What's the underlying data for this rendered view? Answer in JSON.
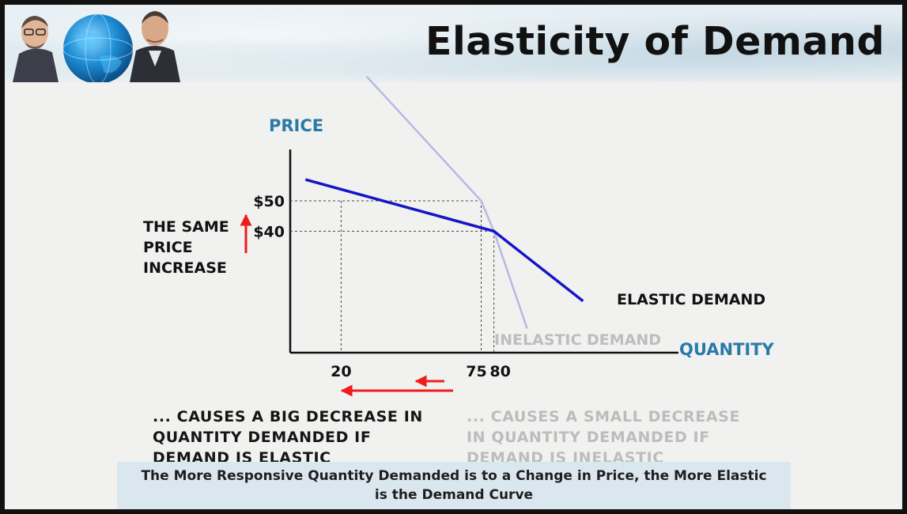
{
  "header": {
    "title": "Elasticity of Demand"
  },
  "chart_data": {
    "type": "line",
    "xlabel": "QUANTITY",
    "ylabel": "PRICE",
    "x_ticks": [
      20,
      75,
      80
    ],
    "x_tick_labels": [
      "20",
      "75",
      "80"
    ],
    "y_ticks": [
      40,
      50
    ],
    "y_tick_labels": [
      "$40",
      "$50"
    ],
    "xlim": [
      0,
      140
    ],
    "ylim": [
      0,
      77
    ],
    "grid": false,
    "series": [
      {
        "name": "ELASTIC DEMAND",
        "x": [
          6,
          80,
          115
        ],
        "y": [
          57,
          40,
          17
        ],
        "color": "#1515c8"
      },
      {
        "name": "INELASTIC DEMAND",
        "x": [
          30,
          75,
          80,
          93
        ],
        "y": [
          91,
          50,
          40,
          8
        ],
        "color": "#b8b8e4"
      }
    ],
    "guides": [
      {
        "x": 20,
        "y": 50
      },
      {
        "x": 80,
        "y": 40
      },
      {
        "x": 75,
        "y": 50
      }
    ],
    "annotations": {
      "price_increase": "THE SAME PRICE INCREASE",
      "price_increase_lines": [
        "THE SAME",
        "PRICE",
        "INCREASE"
      ],
      "elastic_effect": "... CAUSES A BIG DECREASE IN QUANTITY DEMANDED IF DEMAND IS ELASTIC",
      "inelastic_effect": "... CAUSES A SMALL DECREASE IN QUANTITY DEMANDED IF DEMAND IS INELASTIC"
    },
    "colors": {
      "axis_label": "#2a7aa7",
      "elastic": "#1515c8",
      "inelastic": "#b8b8e4",
      "arrow": "#ee1c1c"
    }
  },
  "captions": {
    "elastic_lines": [
      "... CAUSES A BIG DECREASE IN",
      "QUANTITY DEMANDED IF",
      "DEMAND IS ELASTIC"
    ],
    "inelastic_lines": [
      "... CAUSES A SMALL DECREASE",
      "IN QUANTITY DEMANDED IF",
      "DEMAND IS INELASTIC"
    ]
  },
  "summary": {
    "text": "The More Responsive Quantity Demanded is to a Change in Price, the More Elastic is the Demand Curve"
  }
}
